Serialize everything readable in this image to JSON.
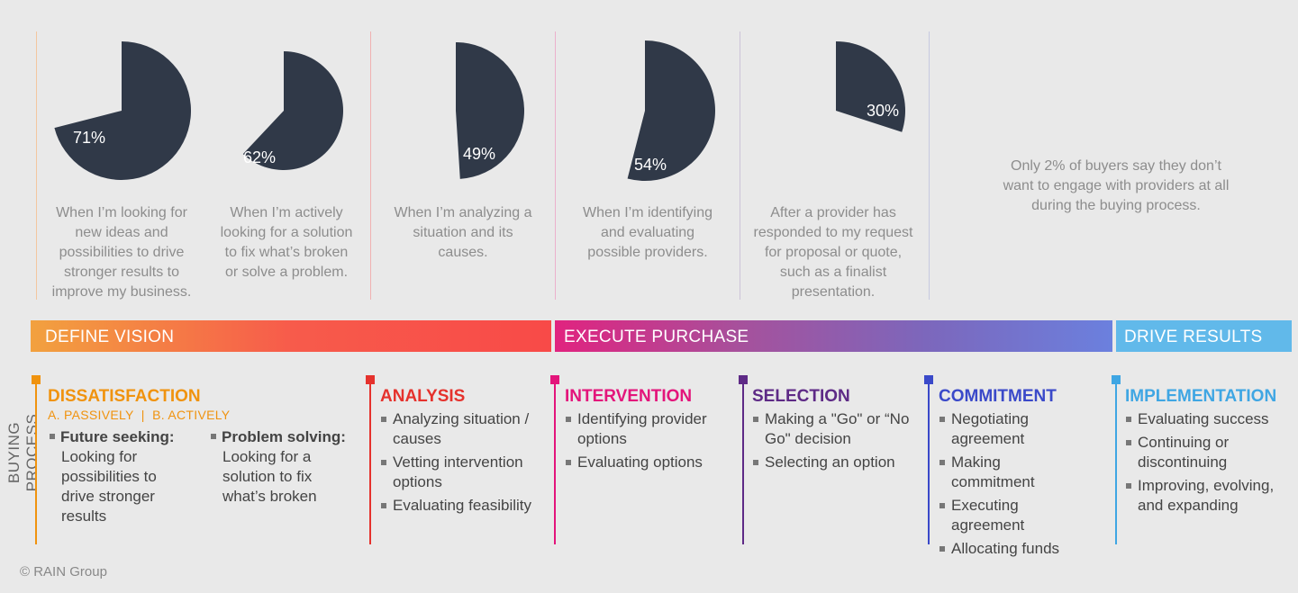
{
  "pies": [
    {
      "percent": 71,
      "label": "71%",
      "caption": "When I’m looking for new ideas and possibilities to drive stronger results to improve my business."
    },
    {
      "percent": 62,
      "label": "62%",
      "caption": "When I’m actively looking for a solution to fix what’s broken or solve a problem."
    },
    {
      "percent": 49,
      "label": "49%",
      "caption": "When I’m analyzing a situation and its causes."
    },
    {
      "percent": 54,
      "label": "54%",
      "caption": "When I’m identifying and evaluating possible providers."
    },
    {
      "percent": 30,
      "label": "30%",
      "caption": "After a provider has responded to my request for proposal or quote, such as a finalist presentation."
    }
  ],
  "side_note": "Only 2% of buyers say they don’t want to engage with providers at all during the buying process.",
  "phases": {
    "define": "DEFINE VISION",
    "execute": "EXECUTE PURCHASE",
    "drive": "DRIVE RESULTS"
  },
  "vertical_label": "BUYING PROCESS",
  "stages": {
    "dissatisfaction": {
      "title": "DISSATISFACTION",
      "subtitle": "A. PASSIVELY  |  B. ACTIVELY",
      "a_head": "Future seeking:",
      "a_lines": [
        "Looking for",
        "possibilities to",
        "drive stronger",
        "results"
      ],
      "b_head": "Problem solving:",
      "b_lines": [
        "Looking for a",
        "solution to fix",
        "what’s broken"
      ]
    },
    "analysis": {
      "title": "ANALYSIS",
      "items": [
        "Analyzing situation / causes",
        "Vetting intervention options",
        "Evaluating feasibility"
      ]
    },
    "intervention": {
      "title": "INTERVENTION",
      "items": [
        "Identifying provider options",
        "Evaluating options"
      ]
    },
    "selection": {
      "title": "SELECTION",
      "items": [
        "Making a \"Go\" or “No Go\" decision",
        "Selecting an option"
      ]
    },
    "commitment": {
      "title": "COMMITMENT",
      "items": [
        "Negotiating agreement",
        "Making commitment",
        "Executing agreement",
        "Allocating funds"
      ]
    },
    "implementation": {
      "title": "IMPLEMENTATION",
      "items": [
        "Evaluating success",
        "Continuing or discontinuing",
        "Improving, evolving, and expanding"
      ]
    }
  },
  "colors": {
    "pie": "#303948",
    "dissatisfaction": "#f0930f",
    "analysis": "#e5322d",
    "intervention": "#e3157b",
    "selection": "#5e2a86",
    "commitment": "#3a49c9",
    "implementation": "#3fa6e3"
  },
  "copyright": "© RAIN Group"
}
